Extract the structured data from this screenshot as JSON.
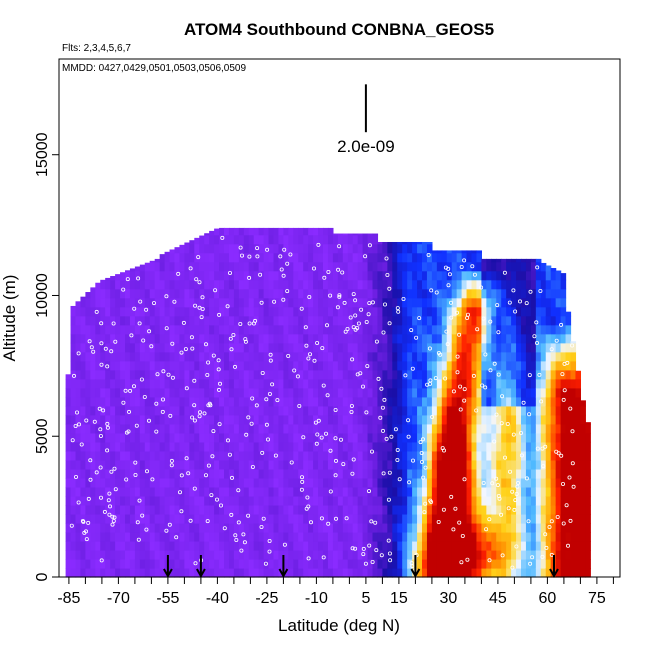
{
  "chart_data": {
    "type": "heatmap",
    "title": "ATOM4 Southbound CONBNA_GEOS5",
    "flights_note": "Flts: 2,3,4,5,6,7",
    "dates_note": "MMDD: 0427,0429,0501,0503,0506,0509",
    "xlabel": "Latitude (deg N)",
    "ylabel": "Altitude (m)",
    "xlim": [
      -88,
      82
    ],
    "ylim": [
      0,
      18400
    ],
    "x_ticks": [
      -85,
      -70,
      -55,
      -40,
      -25,
      -10,
      5,
      15,
      30,
      45,
      60,
      75
    ],
    "x_tick_labels": [
      "-85",
      "-70",
      "-55",
      "-40",
      "-25",
      "-10",
      "5",
      "15",
      "30",
      "45",
      "60",
      "75"
    ],
    "x_minor_ticks": [
      -80,
      -75,
      -65,
      -60,
      -50,
      -45,
      -35,
      -30,
      -20,
      -15,
      -5,
      0,
      10,
      20,
      25,
      35,
      40,
      50,
      55,
      65,
      70,
      80
    ],
    "y_ticks": [
      0,
      5000,
      10000,
      15000
    ],
    "y_tick_labels": [
      "0",
      "5000",
      "10000",
      "15000"
    ],
    "scale_bar": {
      "label": "2.0e-09",
      "lat": 5,
      "alt_bottom": 15800,
      "alt_top": 17500
    },
    "profile_arrows_lat": [
      -55,
      -45,
      -20,
      20,
      62
    ],
    "colors": {
      "purple": "#8a2bff",
      "deep_purple": "#6a1ee0",
      "navy": "#1a0fa8",
      "blue": "#1030ff",
      "light_blue": "#4db8ff",
      "white": "#f2f6ff",
      "yellow": "#ffd21a",
      "orange": "#ff8a00",
      "red": "#ff2000",
      "dark_red": "#c00000"
    }
  }
}
